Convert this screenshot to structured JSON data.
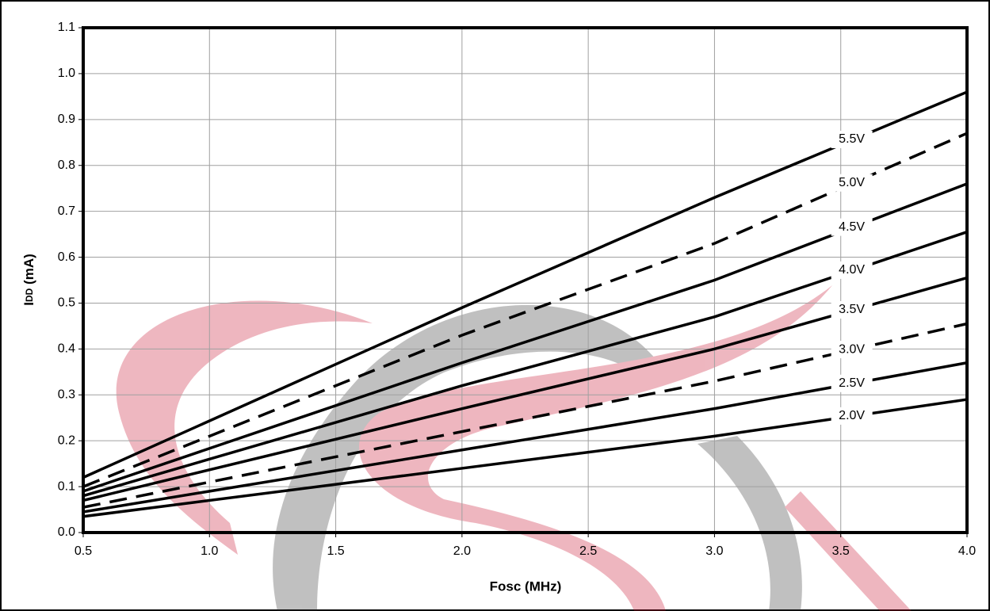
{
  "chart_data": {
    "type": "line",
    "x_label": "Fosc (MHz)",
    "y_label_main": "I",
    "y_label_sub": "DD",
    "y_label_unit": "(mA)",
    "x": [
      0.5,
      2.0,
      3.0,
      4.0
    ],
    "series": [
      {
        "name": "5.5V",
        "color": "#000000",
        "dashed": false,
        "values": [
          0.12,
          0.49,
          0.73,
          0.96
        ]
      },
      {
        "name": "5.0V",
        "color": "#000000",
        "dashed": true,
        "values": [
          0.1,
          0.43,
          0.63,
          0.87
        ]
      },
      {
        "name": "4.5V",
        "color": "#000000",
        "dashed": false,
        "values": [
          0.09,
          0.37,
          0.55,
          0.76
        ]
      },
      {
        "name": "4.0V",
        "color": "#000000",
        "dashed": false,
        "values": [
          0.08,
          0.32,
          0.47,
          0.655
        ]
      },
      {
        "name": "3.5V",
        "color": "#000000",
        "dashed": false,
        "values": [
          0.07,
          0.27,
          0.4,
          0.555
        ]
      },
      {
        "name": "3.0V",
        "color": "#000000",
        "dashed": true,
        "values": [
          0.055,
          0.22,
          0.33,
          0.455
        ]
      },
      {
        "name": "2.5V",
        "color": "#000000",
        "dashed": false,
        "values": [
          0.045,
          0.18,
          0.27,
          0.37
        ]
      },
      {
        "name": "2.0V",
        "color": "#000000",
        "dashed": false,
        "values": [
          0.035,
          0.14,
          0.21,
          0.29
        ]
      }
    ],
    "xlim": [
      0.5,
      4.0
    ],
    "xticks": [
      0.5,
      {
        "value": 1,
        "label": "1.0"
      },
      1.5,
      {
        "value": 2,
        "label": "2.0"
      },
      2.5,
      {
        "value": 3,
        "label": "3.0"
      },
      3.5,
      {
        "value": 4,
        "label": "4.0"
      }
    ],
    "ylim": [
      0,
      1.1
    ],
    "yticks": [
      {
        "value": 0,
        "label": "0.0"
      },
      0.1,
      0.2,
      0.3,
      0.4,
      0.5,
      0.6,
      0.7,
      0.8,
      0.9,
      {
        "value": 1,
        "label": "1.0"
      },
      1.1
    ],
    "grid": true,
    "label_x": 3.55
  }
}
